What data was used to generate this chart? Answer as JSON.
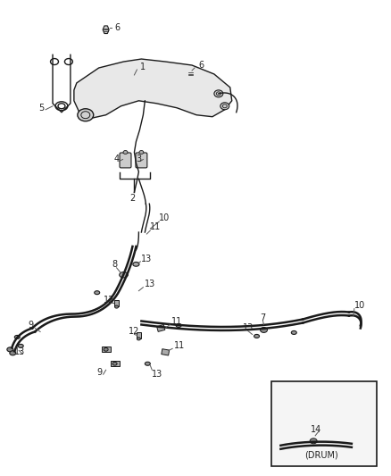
{
  "background_color": "#ffffff",
  "line_color": "#1a1a1a",
  "fig_width": 4.38,
  "fig_height": 5.33,
  "dpi": 100
}
